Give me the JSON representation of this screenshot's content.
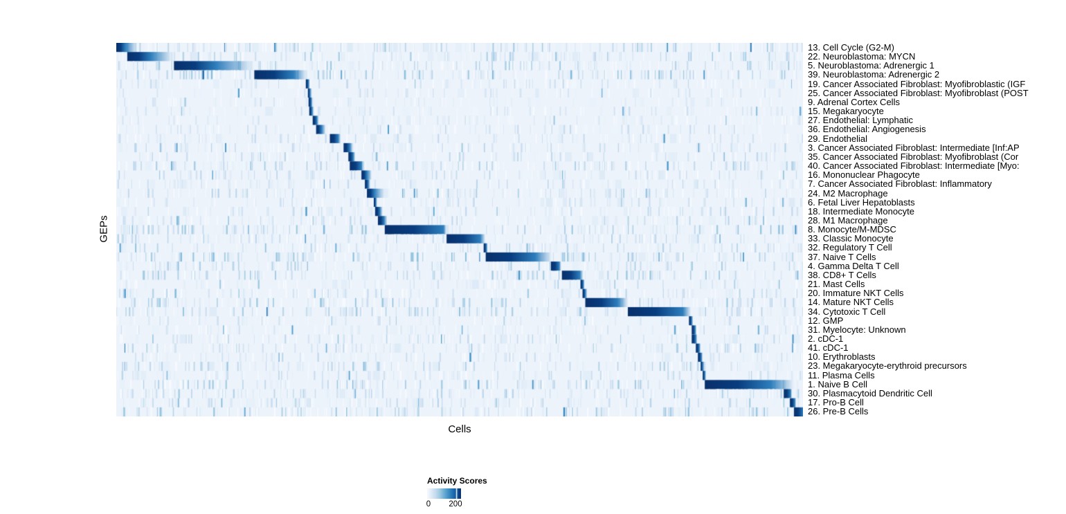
{
  "chart_data": {
    "type": "heatmap",
    "title": "",
    "xlabel": "Cells",
    "ylabel": "GEPs",
    "background_color": "#edf3fb",
    "legend_position": "bottom",
    "colorbar": {
      "title": "Activity Scores",
      "tick_labels": [
        "0",
        "200"
      ],
      "tick_values": [
        0,
        200
      ],
      "range": [
        0,
        230
      ],
      "colors": [
        "#f7fbff",
        "#deebf7",
        "#c6dbef",
        "#9ecae1",
        "#6baed6",
        "#4292c6",
        "#2171b5",
        "#08519c",
        "#08306b"
      ]
    },
    "rows": [
      {
        "label": "13. Cell Cycle (G2-M)",
        "block": [
          0.0,
          0.013
        ],
        "fade": 0.03,
        "noise": 0.5
      },
      {
        "label": "22. Neuroblastoma: MYCN",
        "block": [
          0.016,
          0.05
        ],
        "fade": 0.082,
        "noise": 0.45
      },
      {
        "label": "5. Neuroblastoma: Adrenergic 1",
        "block": [
          0.084,
          0.145
        ],
        "fade": 0.2,
        "noise": 0.5
      },
      {
        "label": "39. Neuroblastoma: Adrenergic 2",
        "block": [
          0.201,
          0.258
        ],
        "fade": 0.277,
        "noise": 0.6
      },
      {
        "label": "19. Cancer Associated Fibroblast: Myofibroblastic (IGF",
        "block": [
          0.276,
          0.28
        ],
        "fade": 0.282,
        "noise": 0.25
      },
      {
        "label": "25. Cancer Associated Fibroblast: Myofibroblast (POST",
        "block": [
          0.279,
          0.282
        ],
        "fade": 0.285,
        "noise": 0.2
      },
      {
        "label": "9. Adrenal Cortex Cells",
        "block": [
          0.28,
          0.284
        ],
        "fade": 0.286,
        "noise": 0.15
      },
      {
        "label": "15. Megakaryocyte",
        "block": [
          0.281,
          0.285
        ],
        "fade": 0.288,
        "noise": 0.2
      },
      {
        "label": "27. Endothelial: Lymphatic",
        "block": [
          0.286,
          0.292
        ],
        "fade": 0.295,
        "noise": 0.2
      },
      {
        "label": "36. Endothelial: Angiogenesis",
        "block": [
          0.291,
          0.299
        ],
        "fade": 0.305,
        "noise": 0.3
      },
      {
        "label": "29. Endothelial",
        "block": [
          0.311,
          0.323
        ],
        "fade": 0.327,
        "noise": 0.25
      },
      {
        "label": "3. Cancer Associated Fibroblast: Intermediate [Inf:AP",
        "block": [
          0.331,
          0.34
        ],
        "fade": 0.345,
        "noise": 0.35
      },
      {
        "label": "35. Cancer Associated Fibroblast: Myofibroblast (Cor",
        "block": [
          0.338,
          0.345
        ],
        "fade": 0.348,
        "noise": 0.3
      },
      {
        "label": "40. Cancer Associated Fibroblast: Intermediate [Myo:",
        "block": [
          0.34,
          0.357
        ],
        "fade": 0.36,
        "noise": 0.45
      },
      {
        "label": "16. Mononuclear Phagocyte",
        "block": [
          0.357,
          0.365
        ],
        "fade": 0.372,
        "noise": 0.35
      },
      {
        "label": "7. Cancer Associated Fibroblast: Inflammatory",
        "block": [
          0.362,
          0.367
        ],
        "fade": 0.37,
        "noise": 0.3
      },
      {
        "label": "24. M2 Macrophage",
        "block": [
          0.365,
          0.376
        ],
        "fade": 0.39,
        "noise": 0.4
      },
      {
        "label": "6. Fetal Liver Hepatoblasts",
        "block": [
          0.375,
          0.378
        ],
        "fade": 0.38,
        "noise": 0.25
      },
      {
        "label": "18. Intermediate Monocyte",
        "block": [
          0.377,
          0.384
        ],
        "fade": 0.388,
        "noise": 0.35
      },
      {
        "label": "28. M1 Macrophage",
        "block": [
          0.381,
          0.39
        ],
        "fade": 0.394,
        "noise": 0.35
      },
      {
        "label": "8. Monocyte/M-MDSC",
        "block": [
          0.391,
          0.476
        ],
        "fade": 0.481,
        "noise": 0.55
      },
      {
        "label": "33. Classic Monocyte",
        "block": [
          0.481,
          0.53
        ],
        "fade": 0.537,
        "noise": 0.4
      },
      {
        "label": "32. Regulatory T Cell",
        "block": [
          0.535,
          0.539
        ],
        "fade": 0.541,
        "noise": 0.35
      },
      {
        "label": "37. Naive T Cells",
        "block": [
          0.538,
          0.61
        ],
        "fade": 0.634,
        "noise": 0.6
      },
      {
        "label": "4. Gamma Delta T Cell",
        "block": [
          0.633,
          0.645
        ],
        "fade": 0.648,
        "noise": 0.45
      },
      {
        "label": "38. CD8+ T Cells",
        "block": [
          0.649,
          0.675
        ],
        "fade": 0.68,
        "noise": 0.5
      },
      {
        "label": "21. Mast Cells",
        "block": [
          0.676,
          0.68
        ],
        "fade": 0.682,
        "noise": 0.2
      },
      {
        "label": "20. Immature NKT Cells",
        "block": [
          0.679,
          0.683
        ],
        "fade": 0.686,
        "noise": 0.35
      },
      {
        "label": "14. Mature NKT Cells",
        "block": [
          0.683,
          0.73
        ],
        "fade": 0.745,
        "noise": 0.55
      },
      {
        "label": "34. Cytotoxic T Cell",
        "block": [
          0.745,
          0.825
        ],
        "fade": 0.837,
        "noise": 0.5
      },
      {
        "label": "12. GMP",
        "block": [
          0.834,
          0.838
        ],
        "fade": 0.84,
        "noise": 0.2
      },
      {
        "label": "31. Myelocyte: Unknown",
        "block": [
          0.838,
          0.843
        ],
        "fade": 0.845,
        "noise": 0.25
      },
      {
        "label": "2. cDC-1",
        "block": [
          0.838,
          0.844
        ],
        "fade": 0.846,
        "noise": 0.35
      },
      {
        "label": "41. cDC-1",
        "block": [
          0.844,
          0.849
        ],
        "fade": 0.851,
        "noise": 0.4
      },
      {
        "label": "10. Erythroblasts",
        "block": [
          0.847,
          0.852
        ],
        "fade": 0.854,
        "noise": 0.3
      },
      {
        "label": "23. Megakaryocyte-erythroid precursors",
        "block": [
          0.851,
          0.854
        ],
        "fade": 0.857,
        "noise": 0.45
      },
      {
        "label": "11. Plasma Cells",
        "block": [
          0.854,
          0.857
        ],
        "fade": 0.859,
        "noise": 0.3
      },
      {
        "label": "1. Naive B Cell",
        "block": [
          0.857,
          0.953
        ],
        "fade": 0.987,
        "noise": 0.5
      },
      {
        "label": "30. Plasmacytoid Dendritic Cell",
        "block": [
          0.972,
          0.982
        ],
        "fade": 0.984,
        "noise": 0.45
      },
      {
        "label": "17. Pro-B Cell",
        "block": [
          0.981,
          0.988
        ],
        "fade": 0.99,
        "noise": 0.4
      },
      {
        "label": "26. Pre-B Cells",
        "block": [
          0.987,
          1.0
        ],
        "fade": 1.0,
        "noise": 0.55
      }
    ]
  }
}
